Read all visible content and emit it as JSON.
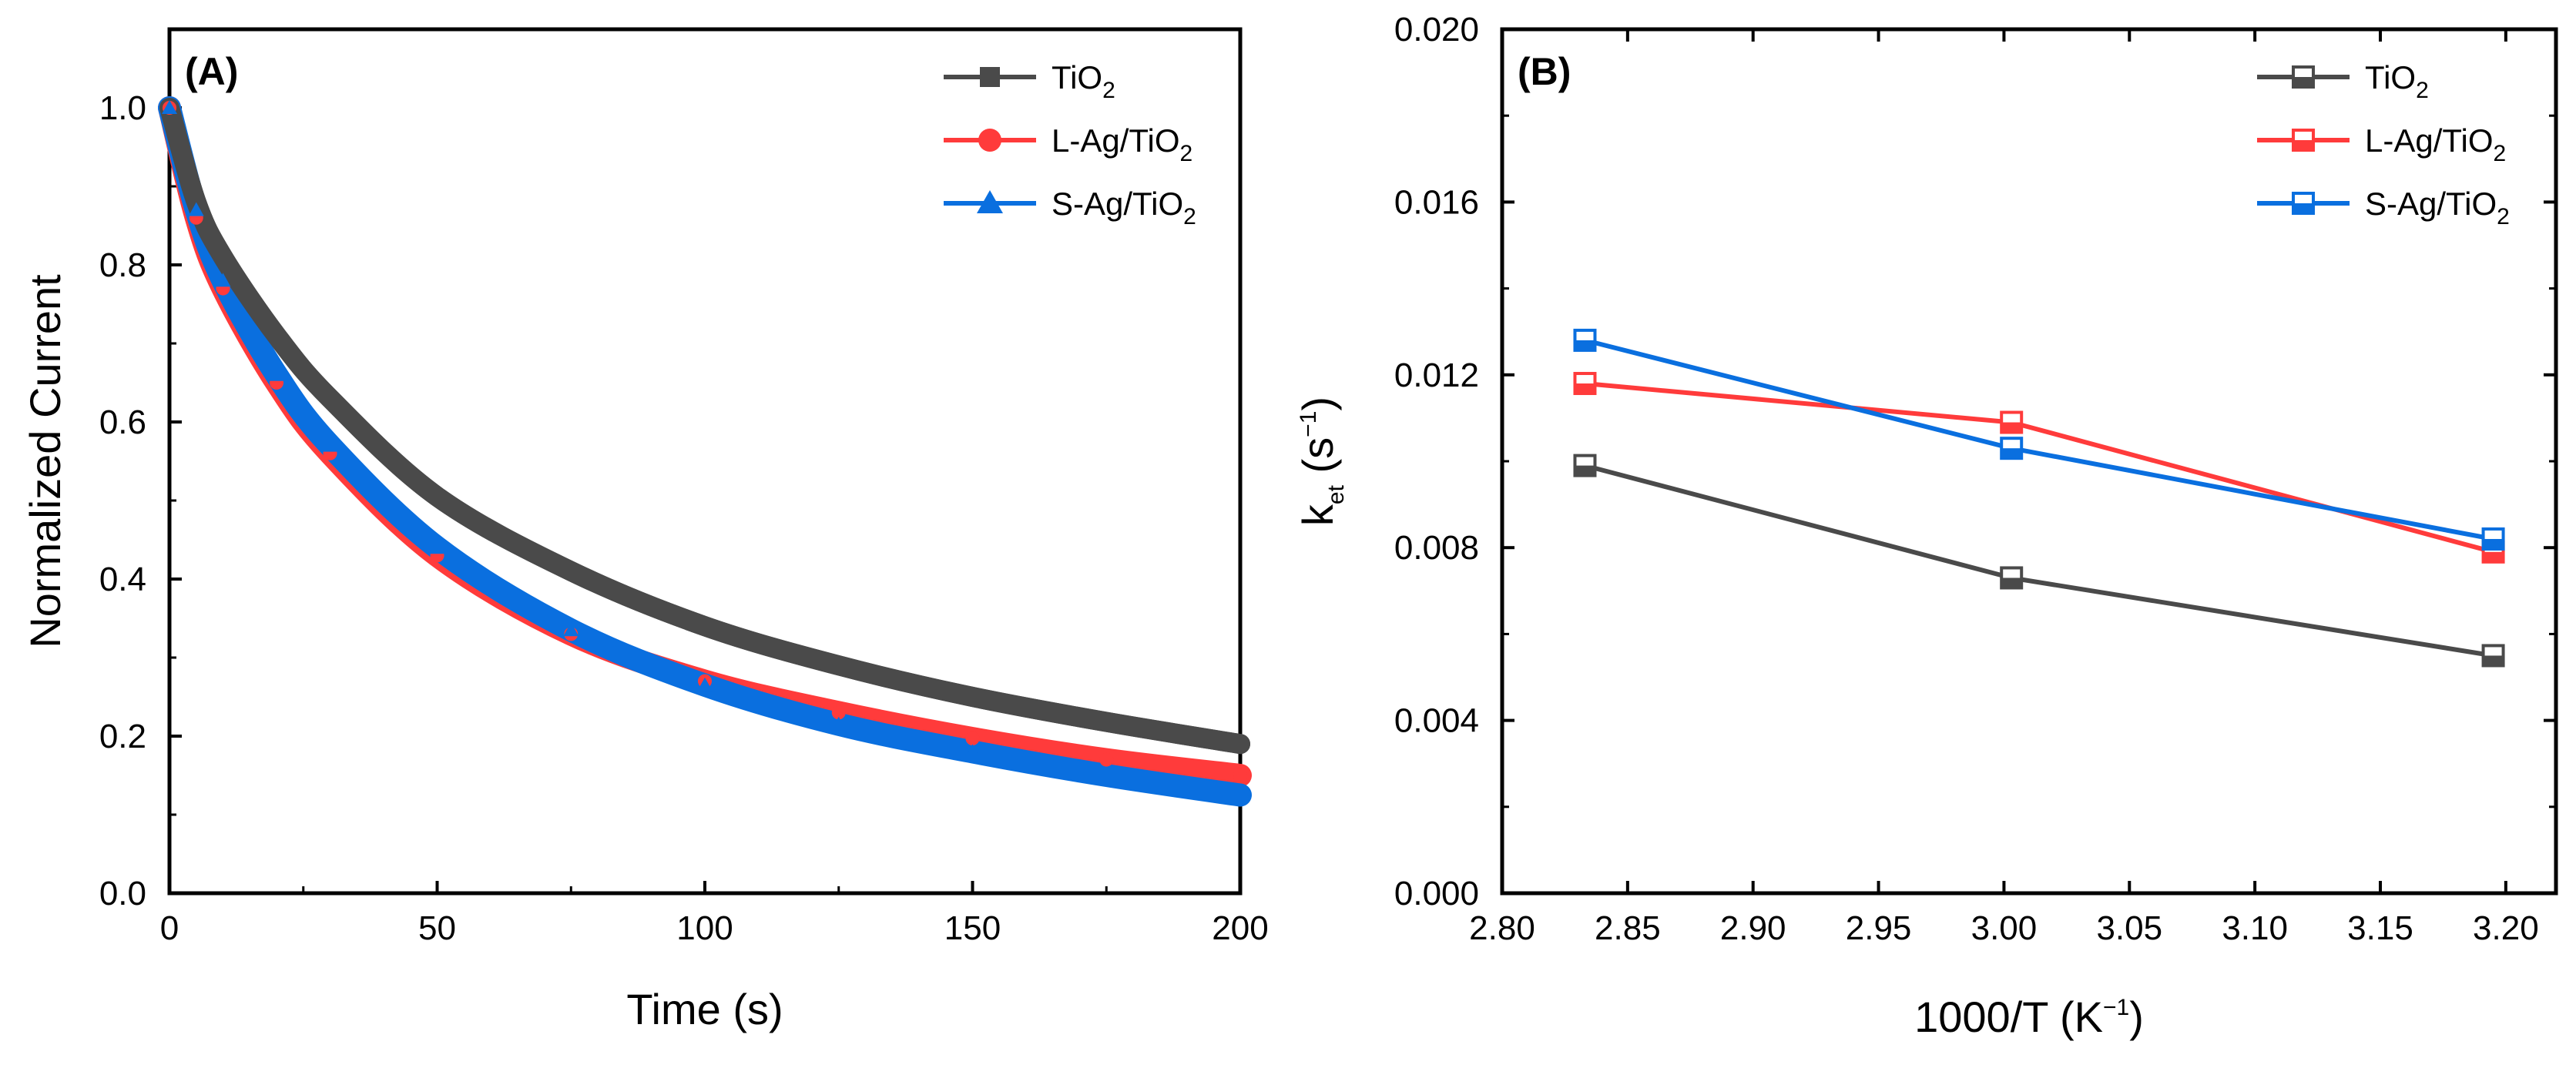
{
  "chart_data": [
    {
      "panel": "(A)",
      "type": "line",
      "title": "",
      "xlabel": "Time (s)",
      "ylabel": "Normalized Current",
      "xlim": [
        0,
        200
      ],
      "ylim": [
        0,
        1.1
      ],
      "xticks": [
        "0",
        "50",
        "100",
        "150",
        "200"
      ],
      "yticks": [
        "0.0",
        "0.2",
        "0.4",
        "0.6",
        "0.8",
        "1.0"
      ],
      "legend_position": "top-right",
      "series": [
        {
          "name": "TiO2",
          "label_main": "TiO",
          "label_sub": "2",
          "color": "#4a4a4a",
          "marker": "square",
          "x": [
            0,
            5,
            10,
            20,
            30,
            50,
            75,
            100,
            125,
            150,
            175,
            200
          ],
          "y": [
            1.0,
            0.88,
            0.81,
            0.71,
            0.63,
            0.505,
            0.41,
            0.34,
            0.29,
            0.25,
            0.218,
            0.19
          ]
        },
        {
          "name": "L-Ag/TiO2",
          "label_main": "L-Ag/TiO",
          "label_sub": "2",
          "color": "#ff3b3b",
          "marker": "circle",
          "x": [
            0,
            5,
            10,
            20,
            30,
            50,
            75,
            100,
            125,
            150,
            175,
            200
          ],
          "y": [
            1.0,
            0.86,
            0.77,
            0.65,
            0.56,
            0.43,
            0.33,
            0.27,
            0.23,
            0.197,
            0.17,
            0.15
          ]
        },
        {
          "name": "S-Ag/TiO2",
          "label_main": "S-Ag/TiO",
          "label_sub": "2",
          "color": "#0a6fdf",
          "marker": "triangle",
          "x": [
            0,
            5,
            10,
            20,
            30,
            50,
            75,
            100,
            125,
            150,
            175,
            200
          ],
          "y": [
            1.0,
            0.87,
            0.78,
            0.66,
            0.57,
            0.44,
            0.335,
            0.265,
            0.215,
            0.18,
            0.15,
            0.125
          ]
        }
      ]
    },
    {
      "panel": "(B)",
      "type": "line",
      "title": "",
      "xlabel_main": "1000/T (K",
      "xlabel_sup": "−1",
      "xlabel_end": ")",
      "ylabel_main": "k",
      "ylabel_sub": "et",
      "ylabel_mid": " (s",
      "ylabel_sup": "−1",
      "ylabel_end": ")",
      "xlim": [
        2.8,
        3.22
      ],
      "ylim": [
        0,
        0.02
      ],
      "xticks": [
        "2.80",
        "2.85",
        "2.90",
        "2.95",
        "3.00",
        "3.05",
        "3.10",
        "3.15",
        "3.20"
      ],
      "yticks": [
        "0.000",
        "0.004",
        "0.008",
        "0.012",
        "0.016",
        "0.020"
      ],
      "legend_position": "top-right",
      "series": [
        {
          "name": "TiO2",
          "label_main": "TiO",
          "label_sub": "2",
          "color": "#4a4a4a",
          "marker": "half-square",
          "x": [
            2.833,
            3.003,
            3.195
          ],
          "y": [
            0.0099,
            0.0073,
            0.0055
          ]
        },
        {
          "name": "L-Ag/TiO2",
          "label_main": "L-Ag/TiO",
          "label_sub": "2",
          "color": "#ff3b3b",
          "marker": "half-square",
          "x": [
            2.833,
            3.003,
            3.195
          ],
          "y": [
            0.0118,
            0.0109,
            0.0079
          ]
        },
        {
          "name": "S-Ag/TiO2",
          "label_main": "S-Ag/TiO",
          "label_sub": "2",
          "color": "#0a6fdf",
          "marker": "half-square",
          "x": [
            2.833,
            3.003,
            3.195
          ],
          "y": [
            0.0128,
            0.0103,
            0.0082
          ]
        }
      ]
    }
  ]
}
